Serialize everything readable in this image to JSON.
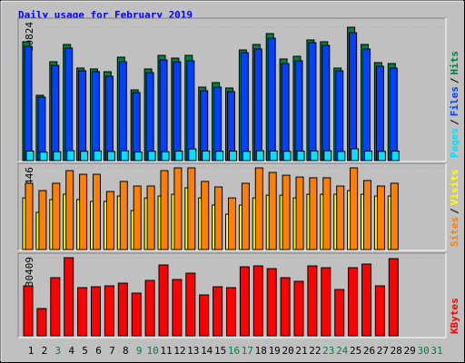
{
  "chart_data": {
    "type": "bar",
    "title": "Daily usage for February 2019",
    "title_color": "#0000ff",
    "legend_separator": "/",
    "categories": [
      "1",
      "2",
      "3",
      "4",
      "5",
      "6",
      "7",
      "8",
      "9",
      "10",
      "11",
      "12",
      "13",
      "14",
      "15",
      "16",
      "17",
      "18",
      "19",
      "20",
      "21",
      "22",
      "23",
      "24",
      "25",
      "26",
      "27",
      "28",
      "29",
      "30",
      "31"
    ],
    "category_colors": [
      "#000000",
      "#000000",
      "#008040",
      "#000000",
      "#000000",
      "#000000",
      "#000000",
      "#000000",
      "#008040",
      "#008040",
      "#000000",
      "#000000",
      "#000000",
      "#000000",
      "#000000",
      "#008040",
      "#008040",
      "#000000",
      "#000000",
      "#000000",
      "#000000",
      "#000000",
      "#008040",
      "#008040",
      "#000000",
      "#000000",
      "#000000",
      "#000000",
      "#000000",
      "#008040",
      "#008040"
    ],
    "panels": [
      {
        "ylim": [
          0,
          10824
        ],
        "yticks": [
          10824
        ],
        "series": [
          {
            "name": "Hits",
            "color": "#008040",
            "values": [
              9646,
              5302,
              8026,
              9425,
              7510,
              7437,
              7216,
              8394,
              5743,
              7437,
              8541,
              8320,
              8541,
              5964,
              6332,
              5891,
              8983,
              9425,
              10309,
              8247,
              8468,
              9793,
              9646,
              7510,
              10824,
              9425,
              7952,
              7879,
              null,
              null,
              null
            ]
          },
          {
            "name": "Files",
            "color": "#0040ff",
            "values": [
              9278,
              5154,
              7731,
              9130,
              7289,
              7216,
              6848,
              8026,
              5522,
              7142,
              8173,
              8026,
              8099,
              5670,
              5964,
              5596,
              8762,
              9057,
              9940,
              7879,
              8099,
              9572,
              9351,
              7289,
              10382,
              9057,
              7658,
              7510,
              null,
              null,
              null
            ]
          },
          {
            "name": "Pages",
            "color": "#00e0ff",
            "values": [
              780,
              690,
              720,
              810,
              760,
              790,
              740,
              800,
              700,
              760,
              720,
              770,
              950,
              780,
              760,
              770,
              750,
              800,
              780,
              760,
              770,
              790,
              800,
              740,
              960,
              780,
              750,
              770,
              null,
              null,
              null
            ]
          }
        ]
      },
      {
        "ylim": [
          0,
          446
        ],
        "yticks": [
          446
        ],
        "series": [
          {
            "name": "Visits",
            "color": "#ffff00",
            "values": [
              282,
              203,
              273,
              302,
              273,
              263,
              263,
              292,
              213,
              282,
              292,
              302,
              337,
              282,
              243,
              193,
              243,
              282,
              297,
              297,
              282,
              302,
              302,
              302,
              322,
              302,
              292,
              292,
              null,
              null,
              null
            ]
          },
          {
            "name": "Sites",
            "color": "#ff8000",
            "values": [
              362,
              322,
              362,
              431,
              411,
              411,
              317,
              372,
              347,
              347,
              431,
              446,
              446,
              372,
              342,
              282,
              362,
              446,
              421,
              406,
              396,
              392,
              392,
              347,
              446,
              377,
              347,
              362,
              null,
              null,
              null
            ]
          }
        ]
      },
      {
        "ylim": [
          0,
          1030409
        ],
        "yticks": [
          1030409
        ],
        "series": [
          {
            "name": "KBytes",
            "color": "#ff0000",
            "values": [
              658983,
              359445,
              766816,
              1030409,
              635020,
              647001,
              658983,
              694927,
              563131,
              730872,
              934557,
              742853,
              826724,
              539168,
              647001,
              635020,
              910594,
              922576,
              886631,
              766816,
              718890,
              922576,
              898613,
              611057,
              898613,
              946539,
              658983,
              1018428,
              null,
              null,
              null
            ]
          }
        ]
      }
    ]
  }
}
